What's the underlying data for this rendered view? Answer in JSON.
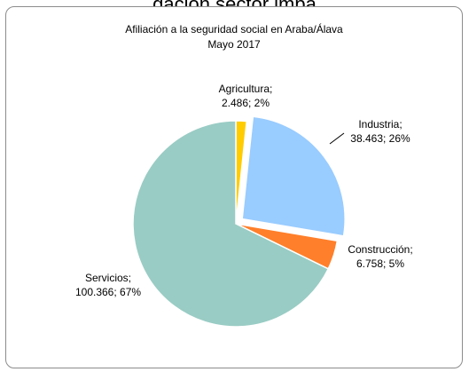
{
  "clipped_heading": "...gación sector impa...",
  "chart_data": {
    "type": "pie",
    "title": "Afiliación a la seguridad social en Araba/Álava",
    "subtitle": "Mayo 2017",
    "legend": "none",
    "slices": [
      {
        "name": "Agricultura",
        "value": 2486,
        "percent": 2,
        "label_line1": "Agricultura;",
        "label_line2": "2.486; 2%",
        "color": "#FFCC00",
        "exploded": false
      },
      {
        "name": "Industria",
        "value": 38463,
        "percent": 26,
        "label_line1": "Industria;",
        "label_line2": "38.463; 26%",
        "color": "#99CCFF",
        "exploded": true
      },
      {
        "name": "Construcción",
        "value": 6758,
        "percent": 5,
        "label_line1": "Construcción;",
        "label_line2": "6.758; 5%",
        "color": "#FF7F2A",
        "exploded": false
      },
      {
        "name": "Servicios",
        "value": 100366,
        "percent": 67,
        "label_line1": "Servicios;",
        "label_line2": "100.366; 67%",
        "color": "#99CCC4",
        "exploded": false
      }
    ]
  }
}
